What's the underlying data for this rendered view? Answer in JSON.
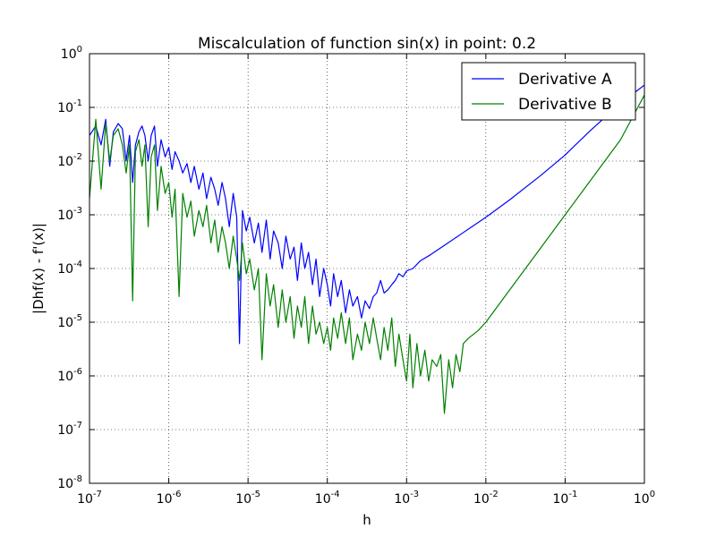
{
  "chart_data": {
    "type": "line",
    "title": "Miscalculation of function sin(x) in point: 0.2",
    "xlabel": "h",
    "ylabel": "|Dhf(x) - f'(x)|",
    "xscale": "log",
    "yscale": "log",
    "xlim": [
      1e-07,
      1
    ],
    "ylim": [
      1e-08,
      1
    ],
    "grid": true,
    "legend_position": "top-right",
    "x_ticks": [
      {
        "base": "10",
        "exp": "-7",
        "value": 1e-07
      },
      {
        "base": "10",
        "exp": "-6",
        "value": 1e-06
      },
      {
        "base": "10",
        "exp": "-5",
        "value": 1e-05
      },
      {
        "base": "10",
        "exp": "-4",
        "value": 0.0001
      },
      {
        "base": "10",
        "exp": "-3",
        "value": 0.001
      },
      {
        "base": "10",
        "exp": "-2",
        "value": 0.01
      },
      {
        "base": "10",
        "exp": "-1",
        "value": 0.1
      },
      {
        "base": "10",
        "exp": "0",
        "value": 1
      }
    ],
    "y_ticks": [
      {
        "base": "10",
        "exp": "-8",
        "value": 1e-08
      },
      {
        "base": "10",
        "exp": "-7",
        "value": 1e-07
      },
      {
        "base": "10",
        "exp": "-6",
        "value": 1e-06
      },
      {
        "base": "10",
        "exp": "-5",
        "value": 1e-05
      },
      {
        "base": "10",
        "exp": "-4",
        "value": 0.0001
      },
      {
        "base": "10",
        "exp": "-3",
        "value": 0.001
      },
      {
        "base": "10",
        "exp": "-2",
        "value": 0.01
      },
      {
        "base": "10",
        "exp": "-1",
        "value": 0.1
      },
      {
        "base": "10",
        "exp": "0",
        "value": 1
      }
    ],
    "series": [
      {
        "name": "Derivative A",
        "color": "#0000ff",
        "x": [
          1e-07,
          1.2e-07,
          1.4e-07,
          1.6e-07,
          1.8e-07,
          2e-07,
          2.3e-07,
          2.6e-07,
          2.9e-07,
          3.2e-07,
          3.5e-07,
          3.8e-07,
          4.2e-07,
          4.6e-07,
          5e-07,
          5.5e-07,
          6e-07,
          6.6e-07,
          7.2e-07,
          8e-07,
          9e-07,
          1e-06,
          1.1e-06,
          1.2e-06,
          1.35e-06,
          1.5e-06,
          1.7e-06,
          1.9e-06,
          2.1e-06,
          2.4e-06,
          2.7e-06,
          3e-06,
          3.4e-06,
          3.8e-06,
          4.2e-06,
          4.7e-06,
          5.2e-06,
          5.8e-06,
          6.5e-06,
          7.2e-06,
          7.8e-06,
          8.5e-06,
          9.5e-06,
          1.05e-05,
          1.2e-05,
          1.35e-05,
          1.5e-05,
          1.7e-05,
          1.9e-05,
          2.1e-05,
          2.4e-05,
          2.7e-05,
          3e-05,
          3.4e-05,
          3.8e-05,
          4.2e-05,
          4.7e-05,
          5.2e-05,
          5.8e-05,
          6.5e-05,
          7.2e-05,
          8e-05,
          9e-05,
          0.0001,
          0.00011,
          0.00012,
          0.000135,
          0.00015,
          0.00017,
          0.00019,
          0.00021,
          0.00024,
          0.00027,
          0.0003,
          0.00034,
          0.00038,
          0.00042,
          0.00047,
          0.00052,
          0.00058,
          0.00065,
          0.00072,
          0.0008,
          0.0009,
          0.001,
          0.0012,
          0.0015,
          0.002,
          0.003,
          0.005,
          0.01,
          0.02,
          0.05,
          0.1,
          0.2,
          0.5,
          1.0
        ],
        "y": [
          0.03,
          0.045,
          0.02,
          0.06,
          0.008,
          0.035,
          0.05,
          0.04,
          0.01,
          0.03,
          0.004,
          0.02,
          0.035,
          0.045,
          0.03,
          0.01,
          0.03,
          0.045,
          0.008,
          0.025,
          0.012,
          0.018,
          0.007,
          0.015,
          0.01,
          0.006,
          0.009,
          0.004,
          0.008,
          0.003,
          0.006,
          0.002,
          0.005,
          0.003,
          0.0015,
          0.004,
          0.002,
          0.0006,
          0.0025,
          0.0009,
          4e-06,
          0.0012,
          0.0005,
          0.0009,
          0.0003,
          0.0007,
          0.0002,
          0.0008,
          0.00015,
          0.0005,
          0.0003,
          0.0001,
          0.0004,
          0.00015,
          0.00025,
          6e-05,
          0.0003,
          0.0001,
          0.0002,
          5e-05,
          0.00015,
          3e-05,
          0.0001,
          5e-05,
          2e-05,
          8e-05,
          3e-05,
          6e-05,
          1.5e-05,
          4e-05,
          2e-05,
          3e-05,
          1.2e-05,
          2.5e-05,
          1.8e-05,
          3e-05,
          3.5e-05,
          6e-05,
          3.5e-05,
          4e-05,
          5e-05,
          6e-05,
          8e-05,
          7e-05,
          9e-05,
          0.0001,
          0.00014,
          0.00018,
          0.00027,
          0.00045,
          0.0009,
          0.0019,
          0.0055,
          0.013,
          0.035,
          0.12,
          0.26
        ]
      },
      {
        "name": "Derivative B",
        "color": "#008000",
        "x": [
          1e-07,
          1.2e-07,
          1.4e-07,
          1.6e-07,
          1.8e-07,
          2e-07,
          2.3e-07,
          2.6e-07,
          2.9e-07,
          3.2e-07,
          3.5e-07,
          3.8e-07,
          4.2e-07,
          4.6e-07,
          5e-07,
          5.5e-07,
          6e-07,
          6.6e-07,
          7.2e-07,
          8e-07,
          9e-07,
          1e-06,
          1.1e-06,
          1.2e-06,
          1.35e-06,
          1.5e-06,
          1.7e-06,
          1.9e-06,
          2.1e-06,
          2.4e-06,
          2.7e-06,
          3e-06,
          3.4e-06,
          3.8e-06,
          4.2e-06,
          4.7e-06,
          5.2e-06,
          5.8e-06,
          6.5e-06,
          7.2e-06,
          7.8e-06,
          8.5e-06,
          9.5e-06,
          1.05e-05,
          1.2e-05,
          1.35e-05,
          1.5e-05,
          1.7e-05,
          1.9e-05,
          2.1e-05,
          2.4e-05,
          2.7e-05,
          3e-05,
          3.4e-05,
          3.8e-05,
          4.2e-05,
          4.7e-05,
          5.2e-05,
          5.8e-05,
          6.5e-05,
          7.2e-05,
          8e-05,
          9e-05,
          0.0001,
          0.00011,
          0.00012,
          0.000135,
          0.00015,
          0.00017,
          0.00019,
          0.00021,
          0.00024,
          0.00027,
          0.0003,
          0.00034,
          0.00038,
          0.00042,
          0.00047,
          0.00052,
          0.00058,
          0.00065,
          0.00072,
          0.0008,
          0.0009,
          0.001,
          0.0011,
          0.0012,
          0.00135,
          0.0015,
          0.0017,
          0.0019,
          0.0021,
          0.0024,
          0.0027,
          0.003,
          0.0034,
          0.0038,
          0.0042,
          0.0047,
          0.0052,
          0.006,
          0.008,
          0.01,
          0.02,
          0.05,
          0.1,
          0.2,
          0.5,
          1.0
        ],
        "y": [
          0.002,
          0.06,
          0.003,
          0.05,
          0.01,
          0.03,
          0.04,
          0.02,
          0.006,
          0.02,
          2.5e-05,
          0.015,
          0.025,
          0.008,
          0.02,
          0.0006,
          0.012,
          0.02,
          0.0012,
          0.008,
          0.0025,
          0.004,
          0.0009,
          0.003,
          3e-05,
          0.0025,
          0.0009,
          0.0018,
          0.0004,
          0.0012,
          0.0006,
          0.0015,
          0.0003,
          0.0008,
          0.0002,
          0.0006,
          0.0003,
          0.0001,
          0.0004,
          0.00015,
          6e-05,
          0.0003,
          8e-05,
          0.00015,
          4e-05,
          0.0001,
          2e-06,
          8e-05,
          2e-05,
          5e-05,
          8e-06,
          4e-05,
          1e-05,
          3e-05,
          5e-06,
          2e-05,
          8e-06,
          3e-05,
          4e-06,
          2e-05,
          6e-06,
          1e-05,
          4e-06,
          8e-06,
          3e-06,
          1.2e-05,
          5e-06,
          1.5e-05,
          4e-06,
          1.2e-05,
          2e-06,
          6e-06,
          3e-06,
          1e-05,
          4e-06,
          1.2e-05,
          5e-06,
          2e-06,
          8e-06,
          3e-06,
          1.2e-05,
          1.5e-06,
          6e-06,
          2e-06,
          8e-07,
          6e-06,
          6e-07,
          4e-06,
          1e-06,
          3e-06,
          8e-07,
          2e-06,
          1.5e-06,
          2.5e-06,
          2e-07,
          2e-06,
          6e-07,
          2.5e-06,
          1.2e-06,
          4e-06,
          5e-06,
          7e-06,
          1e-05,
          4e-05,
          0.00025,
          0.001,
          0.004,
          0.025,
          0.17
        ]
      }
    ]
  }
}
